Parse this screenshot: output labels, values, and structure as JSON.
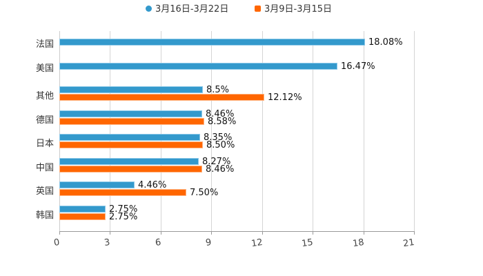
{
  "legend": [
    {
      "label": "3月16日-3月22日",
      "color": "#3399cc",
      "shape": "circle"
    },
    {
      "label": "3月9日-3月15日",
      "color": "#ff6600",
      "shape": "square"
    }
  ],
  "xaxis": {
    "ticks": [
      "0",
      "3",
      "6",
      "9",
      "12",
      "15",
      "18",
      "21"
    ]
  },
  "categories": [
    {
      "name": "法国",
      "blue_label": "18.08%",
      "orange_label": null
    },
    {
      "name": "美国",
      "blue_label": "16.47%",
      "orange_label": null
    },
    {
      "name": "其他",
      "blue_label": "8.5%",
      "orange_label": "12.12%"
    },
    {
      "name": "德国",
      "blue_label": "8.46%",
      "orange_label": "8.58%"
    },
    {
      "name": "日本",
      "blue_label": "8.35%",
      "orange_label": "8.50%"
    },
    {
      "name": "中国",
      "blue_label": "8.27%",
      "orange_label": "8.46%"
    },
    {
      "name": "英国",
      "blue_label": "4.46%",
      "orange_label": "7.50%"
    },
    {
      "name": "韩国",
      "blue_label": "2.75%",
      "orange_label": "2.75%"
    }
  ],
  "chart_data": {
    "type": "bar",
    "orientation": "horizontal",
    "title": "",
    "xlabel": "",
    "ylabel": "",
    "xlim": [
      0,
      21
    ],
    "xticks": [
      0,
      3,
      6,
      9,
      12,
      15,
      18,
      21
    ],
    "grid": true,
    "legend_position": "top",
    "categories": [
      "法国",
      "美国",
      "其他",
      "德国",
      "日本",
      "中国",
      "英国",
      "韩国"
    ],
    "series": [
      {
        "name": "3月16日-3月22日",
        "color": "#3399cc",
        "values": [
          18.08,
          16.47,
          8.5,
          8.46,
          8.35,
          8.27,
          4.46,
          2.75
        ]
      },
      {
        "name": "3月9日-3月15日",
        "color": "#ff6600",
        "values": [
          null,
          null,
          12.12,
          8.58,
          8.5,
          8.46,
          7.5,
          2.75
        ]
      }
    ],
    "value_suffix": "%"
  }
}
